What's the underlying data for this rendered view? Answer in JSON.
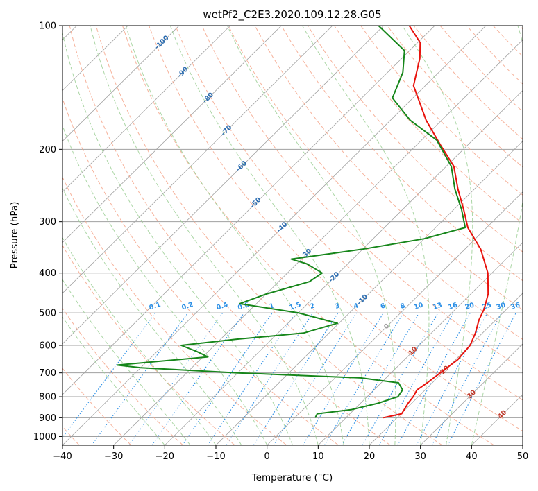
{
  "chart_data": {
    "type": "line",
    "title": "wetPf2_C2E3.2020.109.12.28.G05",
    "xlabel": "Temperature (°C)",
    "ylabel": "Pressure (hPa)",
    "xlim": [
      -40,
      50
    ],
    "ylim": [
      1050,
      100
    ],
    "y_scale": "log",
    "x_ticks": [
      -40,
      -30,
      -20,
      -10,
      0,
      10,
      20,
      30,
      40,
      50
    ],
    "y_ticks": [
      100,
      200,
      300,
      400,
      500,
      600,
      700,
      800,
      900,
      1000
    ],
    "grid": true,
    "colors": {
      "temperature": "#e8120c",
      "dewpoint": "#16861a",
      "isotherm": "#a0a0a0",
      "dry_adiabat": "#f4a58a",
      "moist_adiabat": "#9ccf95",
      "mixing_ratio": "#2b8fe6",
      "isotherm_label_cold": "#2b6cb0",
      "isotherm_label_warm": "#c0392b"
    },
    "series": [
      {
        "key": "temperature",
        "points": [
          {
            "p": 900,
            "t": 17.3
          },
          {
            "p": 880,
            "t": 20.1
          },
          {
            "p": 860,
            "t": 19.8
          },
          {
            "p": 830,
            "t": 19.3
          },
          {
            "p": 800,
            "t": 19.0
          },
          {
            "p": 770,
            "t": 18.4
          },
          {
            "p": 740,
            "t": 19.0
          },
          {
            "p": 700,
            "t": 19.6
          },
          {
            "p": 650,
            "t": 20.4
          },
          {
            "p": 600,
            "t": 20.0
          },
          {
            "p": 560,
            "t": 18.6
          },
          {
            "p": 520,
            "t": 16.7
          },
          {
            "p": 490,
            "t": 15.6
          },
          {
            "p": 450,
            "t": 13.4
          },
          {
            "p": 400,
            "t": 9.2
          },
          {
            "p": 350,
            "t": 3.1
          },
          {
            "p": 310,
            "t": -3.7
          },
          {
            "p": 280,
            "t": -8.1
          },
          {
            "p": 250,
            "t": -13.2
          },
          {
            "p": 220,
            "t": -18.5
          },
          {
            "p": 195,
            "t": -25.4
          },
          {
            "p": 170,
            "t": -33.0
          },
          {
            "p": 140,
            "t": -42.3
          },
          {
            "p": 120,
            "t": -46.5
          },
          {
            "p": 110,
            "t": -49.5
          },
          {
            "p": 100,
            "t": -55.0
          }
        ]
      },
      {
        "key": "dewpoint",
        "points": [
          {
            "p": 900,
            "t": 4.0
          },
          {
            "p": 880,
            "t": 3.6
          },
          {
            "p": 860,
            "t": 9.5
          },
          {
            "p": 830,
            "t": 13.4
          },
          {
            "p": 800,
            "t": 16.0
          },
          {
            "p": 770,
            "t": 15.6
          },
          {
            "p": 740,
            "t": 13.4
          },
          {
            "p": 720,
            "t": 5.0
          },
          {
            "p": 700,
            "t": -20.0
          },
          {
            "p": 680,
            "t": -40.0
          },
          {
            "p": 670,
            "t": -45.1
          },
          {
            "p": 640,
            "t": -29.0
          },
          {
            "p": 620,
            "t": -32.4
          },
          {
            "p": 600,
            "t": -36.5
          },
          {
            "p": 580,
            "t": -27.0
          },
          {
            "p": 560,
            "t": -15.0
          },
          {
            "p": 530,
            "t": -10.3
          },
          {
            "p": 500,
            "t": -20.0
          },
          {
            "p": 475,
            "t": -33.3
          },
          {
            "p": 450,
            "t": -30.0
          },
          {
            "p": 420,
            "t": -24.0
          },
          {
            "p": 400,
            "t": -23.2
          },
          {
            "p": 380,
            "t": -28.0
          },
          {
            "p": 370,
            "t": -32.0
          },
          {
            "p": 350,
            "t": -20.0
          },
          {
            "p": 330,
            "t": -10.0
          },
          {
            "p": 310,
            "t": -4.2
          },
          {
            "p": 280,
            "t": -8.5
          },
          {
            "p": 250,
            "t": -13.8
          },
          {
            "p": 220,
            "t": -19.0
          },
          {
            "p": 190,
            "t": -27.0
          },
          {
            "p": 170,
            "t": -36.1
          },
          {
            "p": 150,
            "t": -44.0
          },
          {
            "p": 130,
            "t": -47.0
          },
          {
            "p": 115,
            "t": -51.0
          },
          {
            "p": 100,
            "t": -61.0
          }
        ]
      }
    ],
    "isotherm_labels": [
      {
        "text": "-100",
        "t": -100,
        "p": 110,
        "color_key": "isotherm_label_cold"
      },
      {
        "text": "-90",
        "t": -90,
        "p": 130,
        "color_key": "isotherm_label_cold"
      },
      {
        "text": "-80",
        "t": -80,
        "p": 150,
        "color_key": "isotherm_label_cold"
      },
      {
        "text": "-70",
        "t": -70,
        "p": 180,
        "color_key": "isotherm_label_cold"
      },
      {
        "text": "-60",
        "t": -60,
        "p": 220,
        "color_key": "isotherm_label_cold"
      },
      {
        "text": "-50",
        "t": -50,
        "p": 270,
        "color_key": "isotherm_label_cold"
      },
      {
        "text": "-40",
        "t": -40,
        "p": 310,
        "color_key": "isotherm_label_cold"
      },
      {
        "text": "-30",
        "t": -30,
        "p": 360,
        "color_key": "isotherm_label_cold"
      },
      {
        "text": "-20",
        "t": -20,
        "p": 410,
        "color_key": "isotherm_label_cold"
      },
      {
        "text": "-10",
        "t": -10,
        "p": 465,
        "color_key": "isotherm_label_cold"
      },
      {
        "text": "0",
        "t": 0,
        "p": 540,
        "color_key": "isotherm_label_neutral"
      },
      {
        "text": "10",
        "t": 10,
        "p": 620,
        "color_key": "isotherm_label_warm"
      },
      {
        "text": "20",
        "t": 20,
        "p": 690,
        "color_key": "isotherm_label_warm"
      },
      {
        "text": "30",
        "t": 30,
        "p": 790,
        "color_key": "isotherm_label_warm"
      },
      {
        "text": "40",
        "t": 40,
        "p": 885,
        "color_key": "isotherm_label_warm"
      }
    ],
    "mixing_ratio_labels": [
      "0.1",
      "0.2",
      "0.4",
      "0.6",
      "1",
      "1.5",
      "2",
      "3",
      "4",
      "6",
      "8",
      "10",
      "13",
      "16",
      "20",
      "25",
      "30",
      "36"
    ],
    "mixing_ratio_values": [
      0.1,
      0.2,
      0.4,
      0.6,
      1,
      1.5,
      2,
      3,
      4,
      6,
      8,
      10,
      13,
      16,
      20,
      25,
      30,
      36
    ],
    "mixing_ratio_label_pressure": 500
  }
}
